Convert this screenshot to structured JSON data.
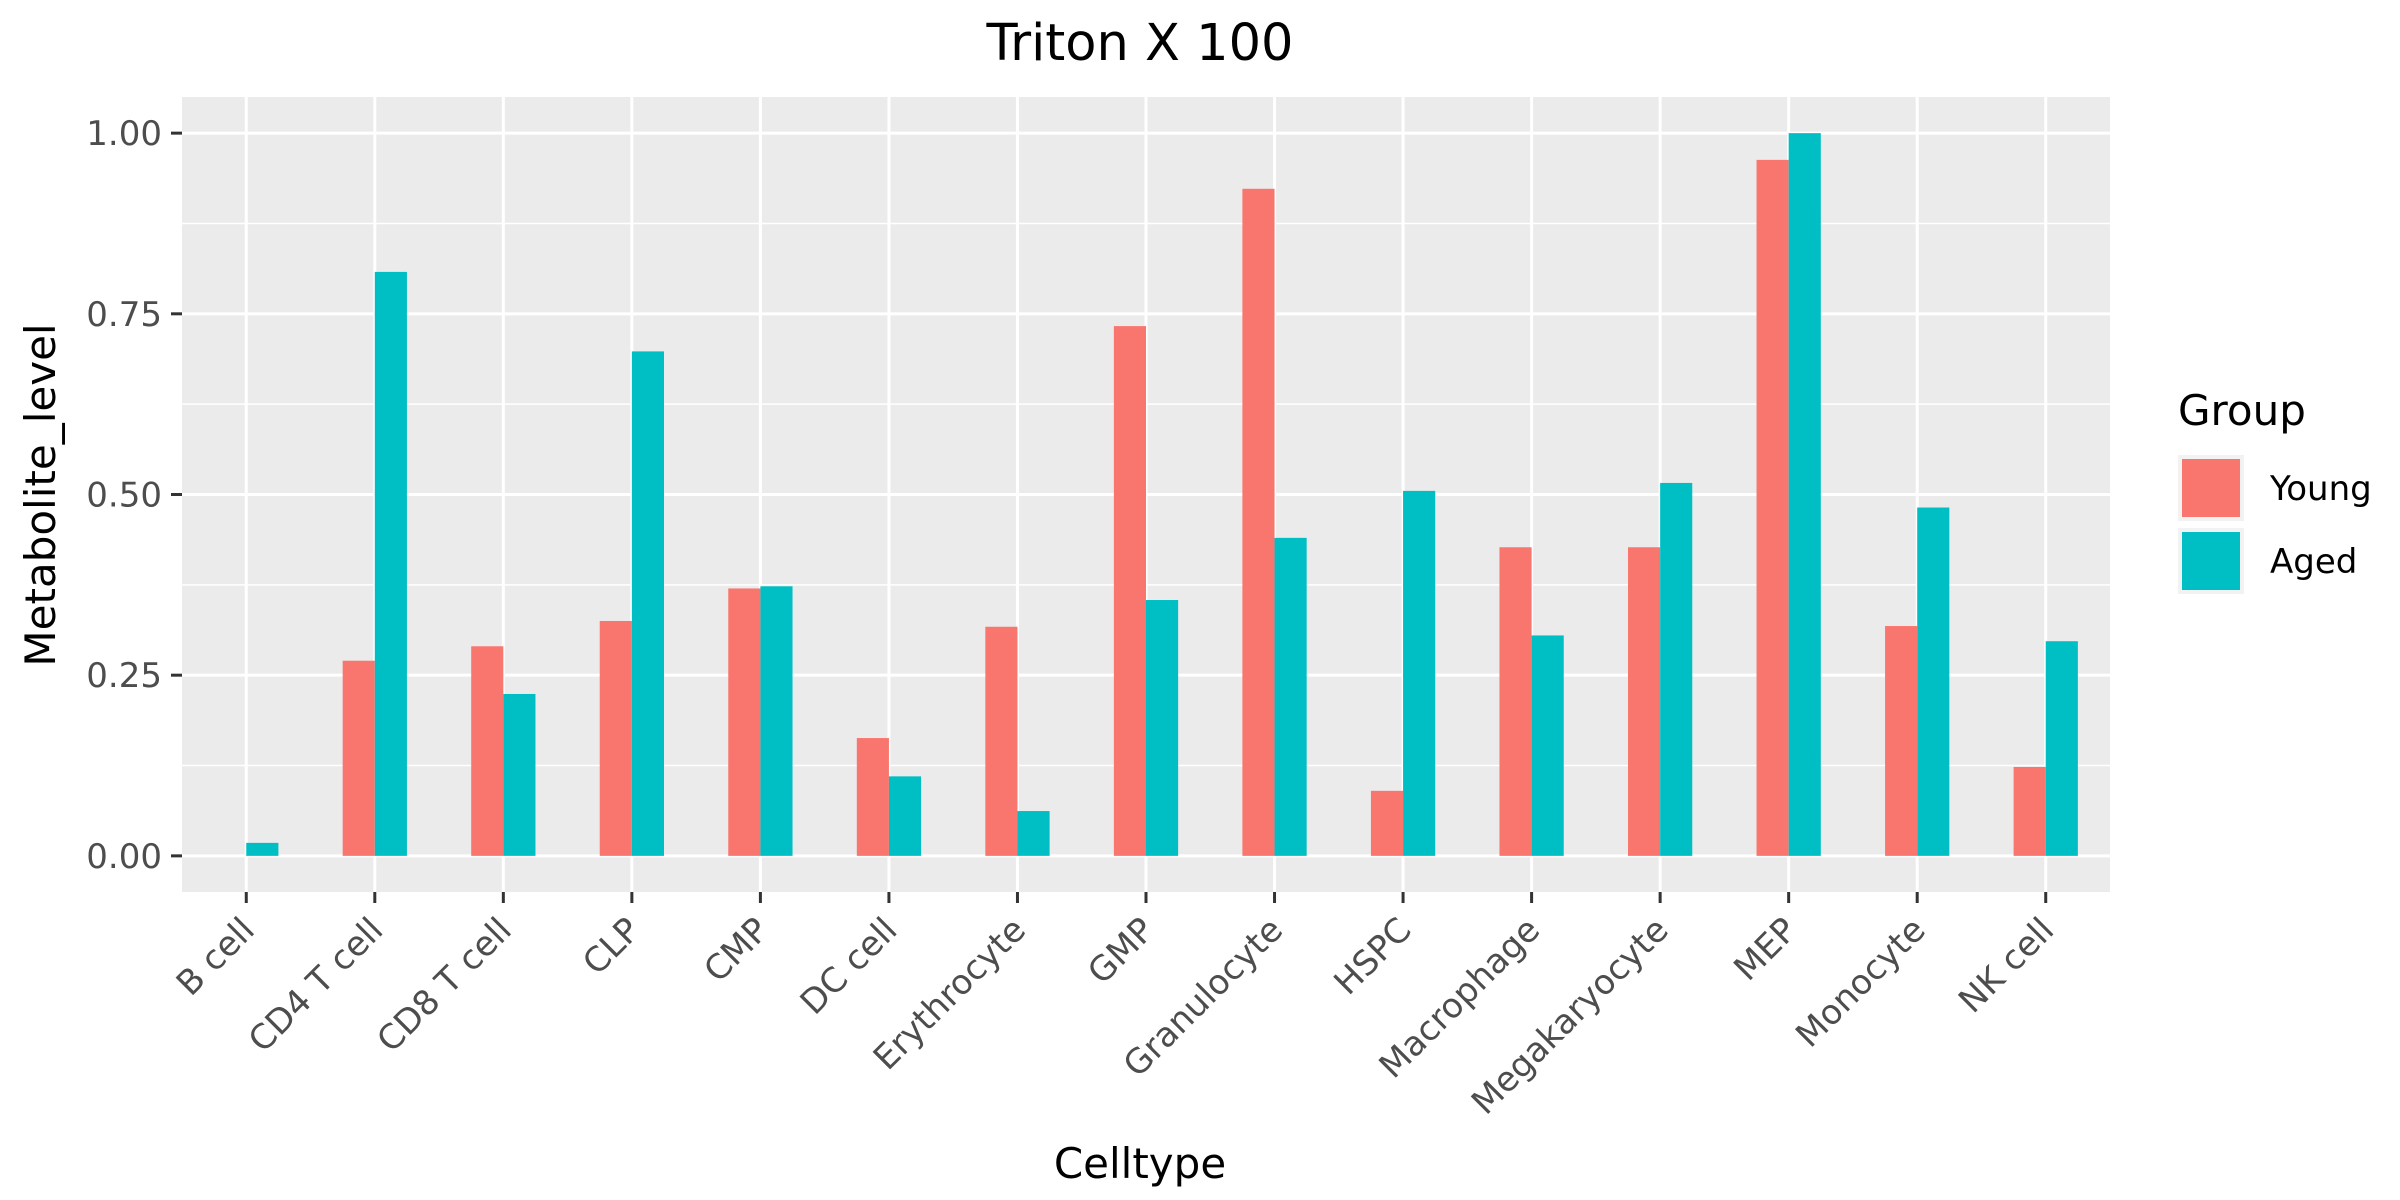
{
  "chart_data": {
    "type": "bar",
    "title": "Triton X 100",
    "xlabel": "Celltype",
    "ylabel": "Metabolite_level",
    "categories": [
      "B cell",
      "CD4 T cell",
      "CD8 T cell",
      "CLP",
      "CMP",
      "DC cell",
      "Erythrocyte",
      "GMP",
      "Granulocyte",
      "HSPC",
      "Macrophage",
      "Megakaryocyte",
      "MEP",
      "Monocyte",
      "NK cell"
    ],
    "series": [
      {
        "name": "Young",
        "color": "#F8766D",
        "values": [
          0.0,
          0.27,
          0.29,
          0.325,
          0.37,
          0.163,
          0.317,
          0.733,
          0.923,
          0.09,
          0.427,
          0.427,
          0.963,
          0.318,
          0.123
        ]
      },
      {
        "name": "Aged",
        "color": "#00BFC4",
        "values": [
          0.018,
          0.808,
          0.224,
          0.698,
          0.373,
          0.11,
          0.062,
          0.354,
          0.44,
          0.505,
          0.305,
          0.516,
          1.0,
          0.482,
          0.297
        ]
      }
    ],
    "ylim": [
      -0.05,
      1.05
    ],
    "yticks": [
      0.0,
      0.25,
      0.5,
      0.75,
      1.0
    ],
    "ytick_labels": [
      "0.00",
      "0.25",
      "0.50",
      "0.75",
      "1.00"
    ],
    "legend": {
      "title": "Group",
      "position": "right"
    },
    "grid": true,
    "panel_background": "#EBEBEB"
  }
}
